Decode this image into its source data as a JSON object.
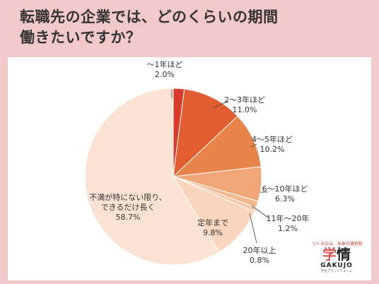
{
  "title": {
    "line1": "転職先の企業では、どのくらいの期間",
    "line2": "働きたいですか？"
  },
  "brand": {
    "tagline": "つくるのは、未来の選択肢",
    "logo_mark": "学",
    "logo_text": "情",
    "name": "GAKUJO",
    "footer": "学生プラットフォーム"
  },
  "chart_data": {
    "type": "pie",
    "title": "転職先の企業では、どのくらいの期間働きたいですか？",
    "unit": "%",
    "start": "top",
    "direction": "clockwise",
    "slices": [
      {
        "label": "〜1年ほど",
        "value": 2.0,
        "display": "2.0%",
        "color": "#d93a2b"
      },
      {
        "label": "2〜3年ほど",
        "value": 11.0,
        "display": "11.0%",
        "color": "#e25d30"
      },
      {
        "label": "4〜5年ほど",
        "value": 10.2,
        "display": "10.2%",
        "color": "#e8834a"
      },
      {
        "label": "6〜10年ほど",
        "value": 6.3,
        "display": "6.3%",
        "color": "#f0a676"
      },
      {
        "label": "11年〜20年",
        "value": 1.2,
        "display": "1.2%",
        "color": "#f3b88e"
      },
      {
        "label": "20年以上",
        "value": 0.8,
        "display": "0.8%",
        "color": "#f5c6a2"
      },
      {
        "label": "定年まで",
        "value": 9.8,
        "display": "9.8%",
        "color": "#f8d5bc"
      },
      {
        "label": "不満が特にない限り、できるだけ長く",
        "value": 58.7,
        "display": "58.7%",
        "color": "#fbe3d4"
      }
    ]
  }
}
